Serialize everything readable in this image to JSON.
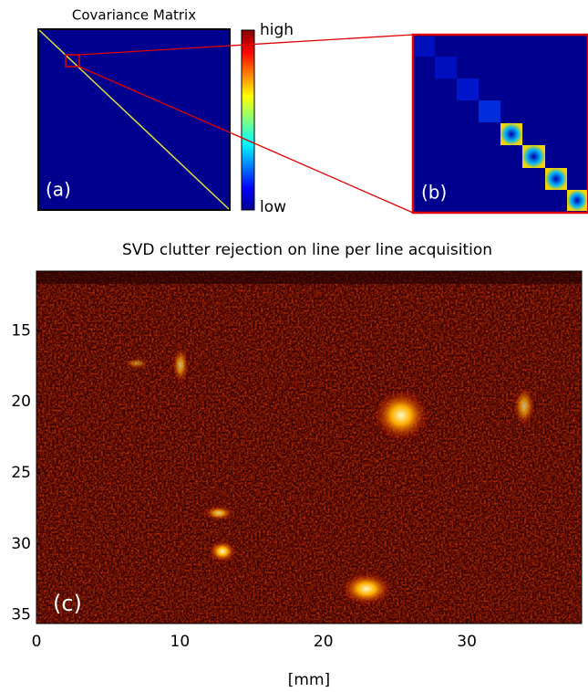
{
  "covariance": {
    "title": "Covariance Matrix",
    "label": "(a)",
    "colorbar_high": "high",
    "colorbar_low": "low"
  },
  "zoom": {
    "label": "(b)"
  },
  "chart_data": {
    "type": "image",
    "title": "SVD clutter rejection on line per line acquisition",
    "label": "(c)",
    "xlabel": "[mm]",
    "xlim": [
      0,
      38
    ],
    "ylim": [
      10.8,
      35.6
    ],
    "yreverse": true,
    "xticks": [
      0,
      10,
      20,
      30
    ],
    "yticks": [
      15,
      20,
      25,
      30,
      35
    ]
  }
}
